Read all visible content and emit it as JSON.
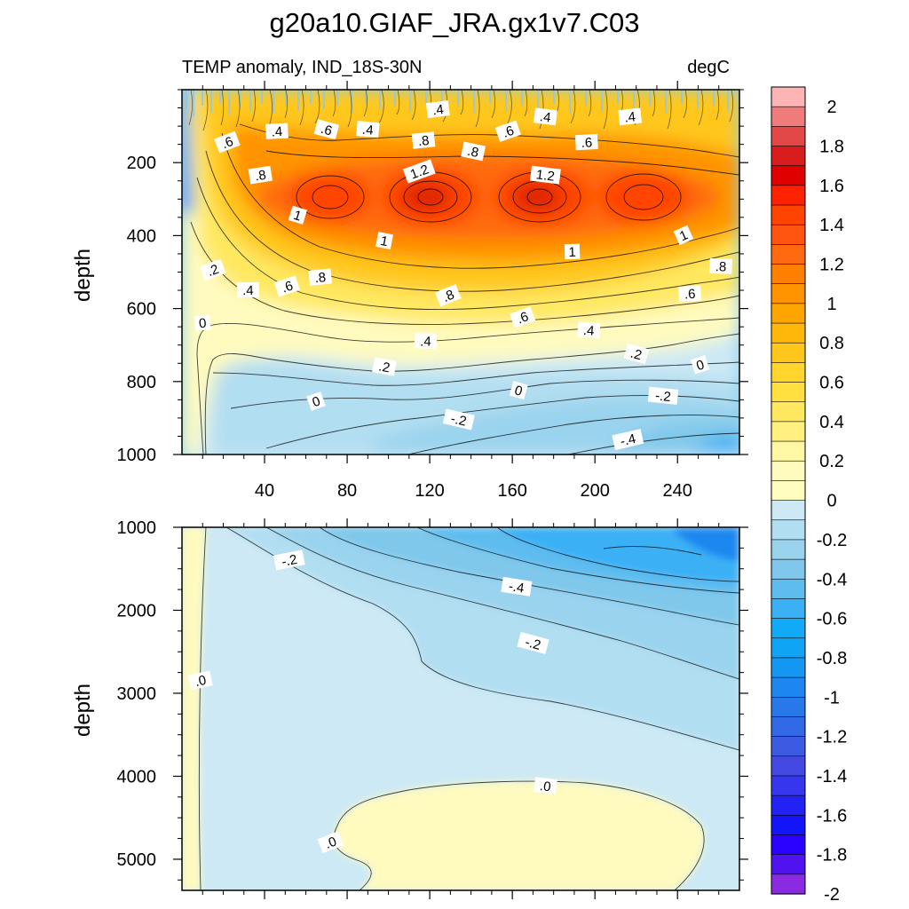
{
  "chart_data": {
    "type": "heatmap",
    "title": "g20a10.GIAF_JRA.gx1v7.C03",
    "subtitle_left": "TEMP anomaly, IND_18S-30N",
    "subtitle_right": "degC",
    "xlabel": "",
    "xlim": [
      0,
      270
    ],
    "x_ticks": [
      "40",
      "80",
      "120",
      "160",
      "200",
      "240"
    ],
    "x_tick_values": [
      40,
      80,
      120,
      160,
      200,
      240
    ],
    "panels": [
      {
        "name": "upper",
        "ylabel": "depth",
        "ylim": [
          0,
          1000
        ],
        "y_ticks": [
          "200",
          "400",
          "600",
          "800",
          "1000"
        ],
        "y_tick_values": [
          200,
          400,
          600,
          800,
          1000
        ],
        "contour_labels": [
          {
            "text": ".4",
            "x": 124,
            "y": 55
          },
          {
            "text": ".4",
            "x": 176,
            "y": 75
          },
          {
            "text": ".4",
            "x": 217,
            "y": 75
          },
          {
            "text": ".4",
            "x": 46,
            "y": 115
          },
          {
            "text": ".6",
            "x": 70,
            "y": 110
          },
          {
            "text": ".4",
            "x": 90,
            "y": 110
          },
          {
            "text": ".6",
            "x": 158,
            "y": 115
          },
          {
            "text": ".6",
            "x": 196,
            "y": 145
          },
          {
            "text": ".6",
            "x": 22,
            "y": 145
          },
          {
            "text": ".8",
            "x": 117,
            "y": 140
          },
          {
            "text": ".8",
            "x": 141,
            "y": 170
          },
          {
            "text": ".8",
            "x": 38,
            "y": 235
          },
          {
            "text": "1.2",
            "x": 115,
            "y": 225
          },
          {
            "text": "1.2",
            "x": 176,
            "y": 235
          },
          {
            "text": "1",
            "x": 56,
            "y": 345
          },
          {
            "text": "1",
            "x": 98,
            "y": 415
          },
          {
            "text": "1",
            "x": 189,
            "y": 445
          },
          {
            "text": "1",
            "x": 243,
            "y": 400
          },
          {
            "text": ".2",
            "x": 15,
            "y": 495
          },
          {
            "text": ".4",
            "x": 32,
            "y": 550
          },
          {
            "text": ".6",
            "x": 51,
            "y": 540
          },
          {
            "text": ".8",
            "x": 67,
            "y": 515
          },
          {
            "text": ".8",
            "x": 129,
            "y": 565
          },
          {
            "text": ".8",
            "x": 261,
            "y": 485
          },
          {
            "text": ".6",
            "x": 246,
            "y": 560
          },
          {
            "text": ".6",
            "x": 165,
            "y": 625
          },
          {
            "text": ".4",
            "x": 197,
            "y": 660
          },
          {
            "text": ".4",
            "x": 118,
            "y": 690
          },
          {
            "text": ".2",
            "x": 98,
            "y": 760
          },
          {
            "text": ".2",
            "x": 220,
            "y": 725
          },
          {
            "text": "0",
            "x": 10,
            "y": 640
          },
          {
            "text": "0",
            "x": 251,
            "y": 755
          },
          {
            "text": "0",
            "x": 163,
            "y": 825
          },
          {
            "text": "0",
            "x": 65,
            "y": 855
          },
          {
            "text": "-.2",
            "x": 233,
            "y": 840
          },
          {
            "text": "-.2",
            "x": 134,
            "y": 905
          },
          {
            "text": "-.4",
            "x": 216,
            "y": 960
          }
        ]
      },
      {
        "name": "lower",
        "ylabel": "depth",
        "ylim": [
          1000,
          5375
        ],
        "y_ticks": [
          "1000",
          "2000",
          "3000",
          "4000",
          "5000"
        ],
        "y_tick_values": [
          1000,
          2000,
          3000,
          4000,
          5000
        ],
        "contour_labels": [
          {
            "text": "-.2",
            "x": 52,
            "y": 1400
          },
          {
            "text": "-.4",
            "x": 162,
            "y": 1720
          },
          {
            "text": "-.2",
            "x": 170,
            "y": 2400
          },
          {
            "text": ".0",
            "x": 9,
            "y": 2850
          },
          {
            "text": ".0",
            "x": 176,
            "y": 4120
          },
          {
            "text": ".0",
            "x": 72,
            "y": 4800
          }
        ]
      }
    ],
    "colorbar": {
      "labels": [
        "2",
        "1.8",
        "1.6",
        "1.4",
        "1.2",
        "1",
        "0.8",
        "0.6",
        "0.4",
        "0.2",
        "0",
        "-0.2",
        "-0.4",
        "-0.6",
        "-0.8",
        "-1",
        "-1.2",
        "-1.4",
        "-1.6",
        "-1.8",
        "-2"
      ],
      "colors": [
        "#fcb4b4",
        "#ef7b7b",
        "#e34848",
        "#d91c1c",
        "#e00000",
        "#ff2200",
        "#ff4400",
        "#ff5510",
        "#ff6a10",
        "#ff7f00",
        "#ff9400",
        "#ffa500",
        "#ffb70a",
        "#ffc71c",
        "#ffd52e",
        "#ffe040",
        "#ffe860",
        "#fff080",
        "#fff7a4",
        "#fffbbf",
        "#fffebf",
        "#cde9f5",
        "#b2def1",
        "#9ad3ee",
        "#7fc8eb",
        "#5fbcef",
        "#3bb0f5",
        "#11aaf7",
        "#10a4f5",
        "#1496f3",
        "#1e87ef",
        "#2878ea",
        "#3269e6",
        "#3c5be2",
        "#4449e2",
        "#3536ee",
        "#2222f4",
        "#1414f8",
        "#2a00ff",
        "#5012ee",
        "#8a2be2"
      ]
    }
  }
}
